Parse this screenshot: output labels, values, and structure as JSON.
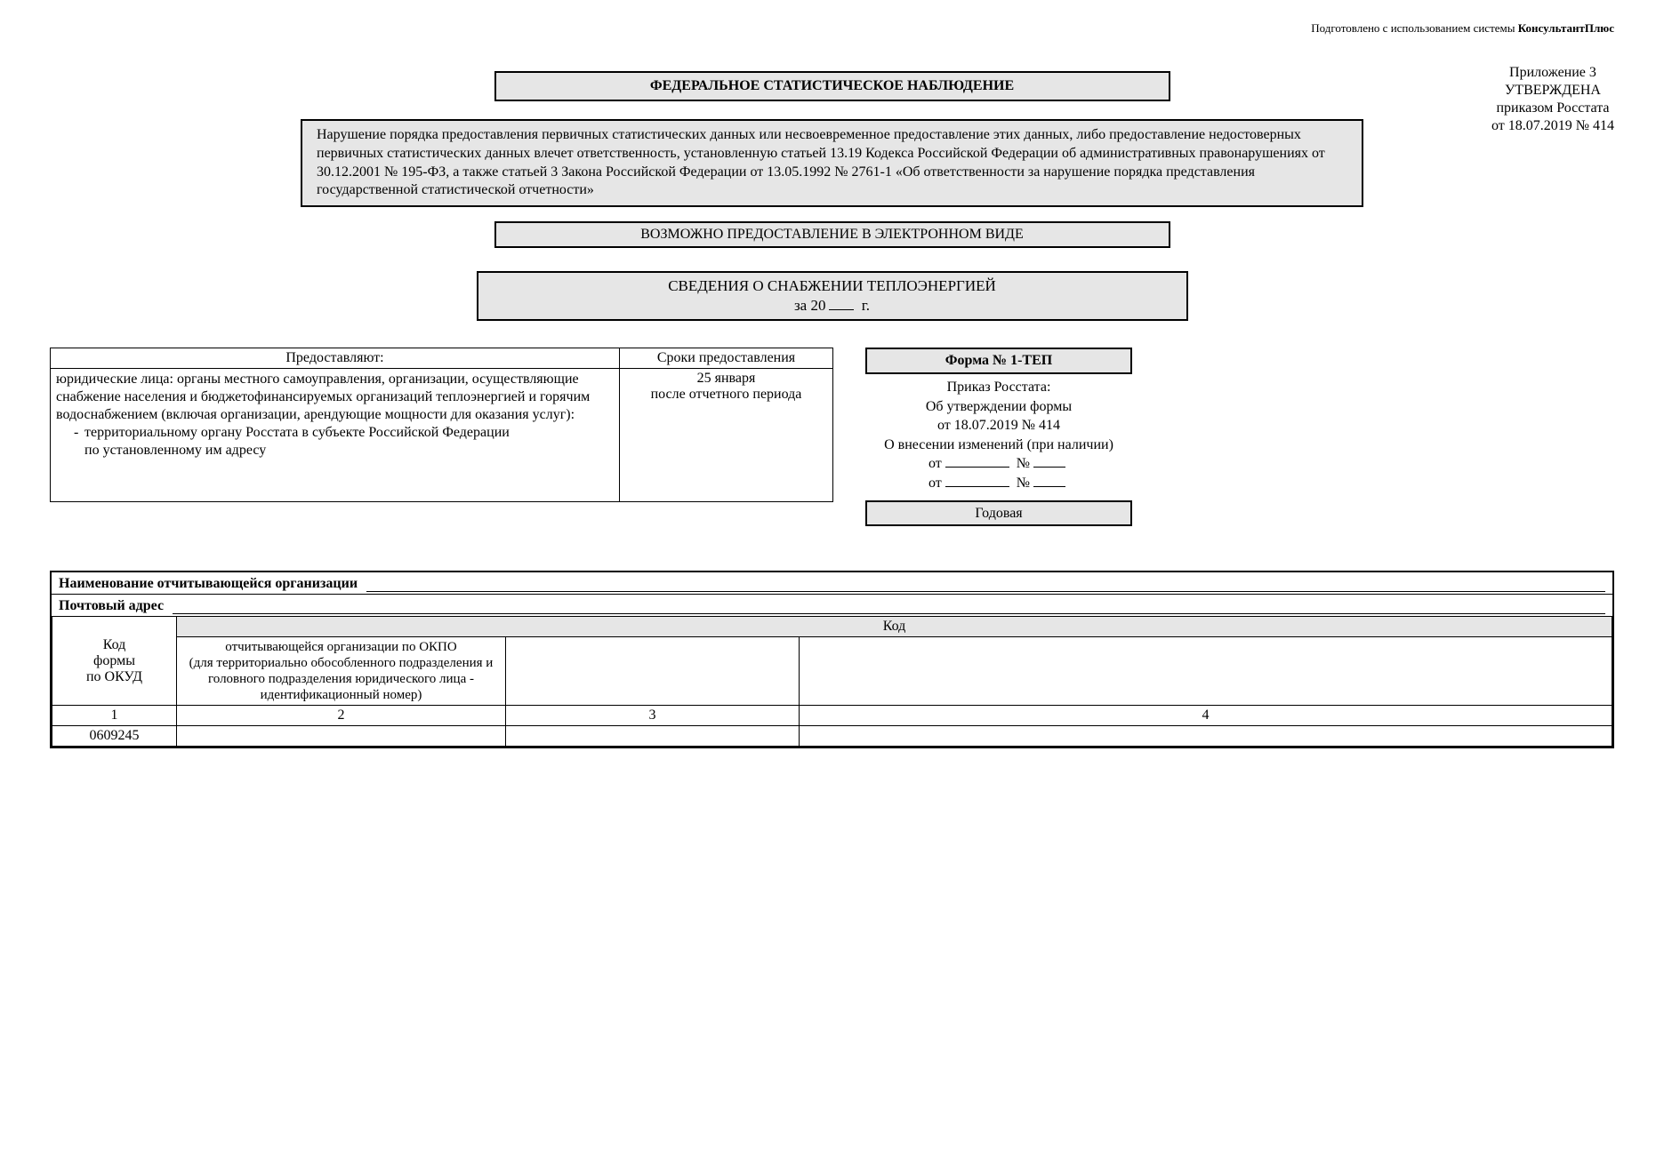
{
  "top_note": {
    "prefix": "Подготовлено с использованием системы ",
    "brand": "КонсультантПлюс"
  },
  "appendix": {
    "l1": "Приложение 3",
    "l2": "УТВЕРЖДЕНА",
    "l3": "приказом Росстата",
    "l4": "от 18.07.2019 № 414"
  },
  "title": "ФЕДЕРАЛЬНОЕ СТАТИСТИЧЕСКОЕ НАБЛЮДЕНИЕ",
  "violation": "Нарушение порядка предоставления первичных статистических данных или несвоевременное предоставление этих данных, либо предоставление недостоверных первичных статистических данных влечет ответственность, установленную статьей 13.19 Кодекса Российской Федерации об административных правонарушениях от 30.12.2001 № 195-ФЗ, а также статьей 3 Закона Российской Федерации от 13.05.1992 № 2761-1 «Об ответственности за нарушение порядка представления государственной статистической отчетности»",
  "electronic": "ВОЗМОЖНО ПРЕДОСТАВЛЕНИЕ В ЭЛЕКТРОННОМ ВИДЕ",
  "sved": {
    "title": "СВЕДЕНИЯ О СНАБЖЕНИИ ТЕПЛОЭНЕРГИЕЙ",
    "year_prefix": "за 20",
    "year_suffix": " г."
  },
  "provide": {
    "h1": "Предоставляют:",
    "h2": "Сроки предоставления",
    "who_l1": "юридические лица: органы местного самоуправления, организации, осуществляющие снабжение населения и бюджетофинансируемых организаций теплоэнергией и горячим водоснабжением (включая организации, арендующие мощности для оказания услуг):",
    "who_l2": "территориальному органу Росстата в субъекте Российской Федерации",
    "who_l3": "по установленному им адресу",
    "deadline_l1": "25 января",
    "deadline_l2": "после отчетного периода"
  },
  "form": {
    "caption": "Форма № 1-ТЕП",
    "l1": "Приказ Росстата:",
    "l2": "Об утверждении формы",
    "l3": "от 18.07.2019 № 414",
    "l4": "О внесении изменений (при наличии)",
    "ot": "от",
    "num": "№",
    "annual": "Годовая"
  },
  "org": {
    "name_label": "Наименование отчитывающейся организации",
    "addr_label": "Почтовый адрес"
  },
  "code_table": {
    "okud_label_l1": "Код",
    "okud_label_l2": "формы",
    "okud_label_l3": "по ОКУД",
    "kod": "Код",
    "okpo_l1": "отчитывающейся организации по ОКПО",
    "okpo_l2": "(для территориально обособленного подразделения и",
    "okpo_l3": "головного подразделения юридического лица -",
    "okpo_l4": "идентификационный номер)",
    "n1": "1",
    "n2": "2",
    "n3": "3",
    "n4": "4",
    "okud_code": "0609245"
  }
}
